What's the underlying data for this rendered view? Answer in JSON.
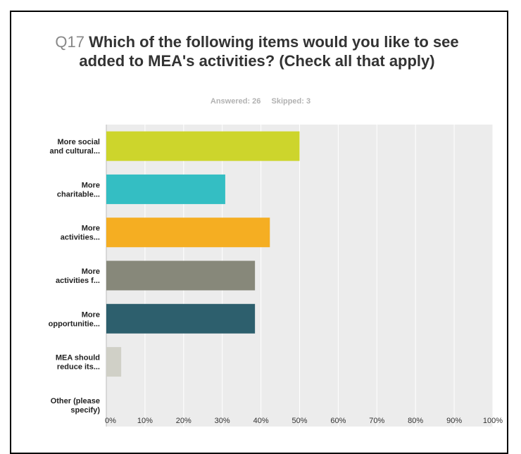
{
  "header": {
    "question_number": "Q17",
    "title": "Which of the following items would you like to see added to MEA's activities? (Check all that apply)",
    "answered": "Answered: 26",
    "skipped": "Skipped: 3"
  },
  "chart_data": {
    "type": "bar",
    "orientation": "horizontal",
    "categories": [
      [
        "More social",
        "and cultural..."
      ],
      [
        "More",
        "charitable..."
      ],
      [
        "More",
        "activities..."
      ],
      [
        "More",
        "activities f..."
      ],
      [
        "More",
        "opportunitie..."
      ],
      [
        "MEA should",
        "reduce its..."
      ],
      [
        "Other (please",
        "specify)"
      ]
    ],
    "values": [
      50,
      30.77,
      42.31,
      38.46,
      38.46,
      3.85,
      0
    ],
    "colors": [
      "#cdd52c",
      "#34bec3",
      "#f5ae22",
      "#87887a",
      "#2d5f6d",
      "#d0d0c7",
      "#cccccc"
    ],
    "xlim": [
      0,
      100
    ],
    "xticks": [
      "0%",
      "10%",
      "20%",
      "30%",
      "40%",
      "50%",
      "60%",
      "70%",
      "80%",
      "90%",
      "100%"
    ],
    "grid": true,
    "plot_background": "#ececec"
  }
}
